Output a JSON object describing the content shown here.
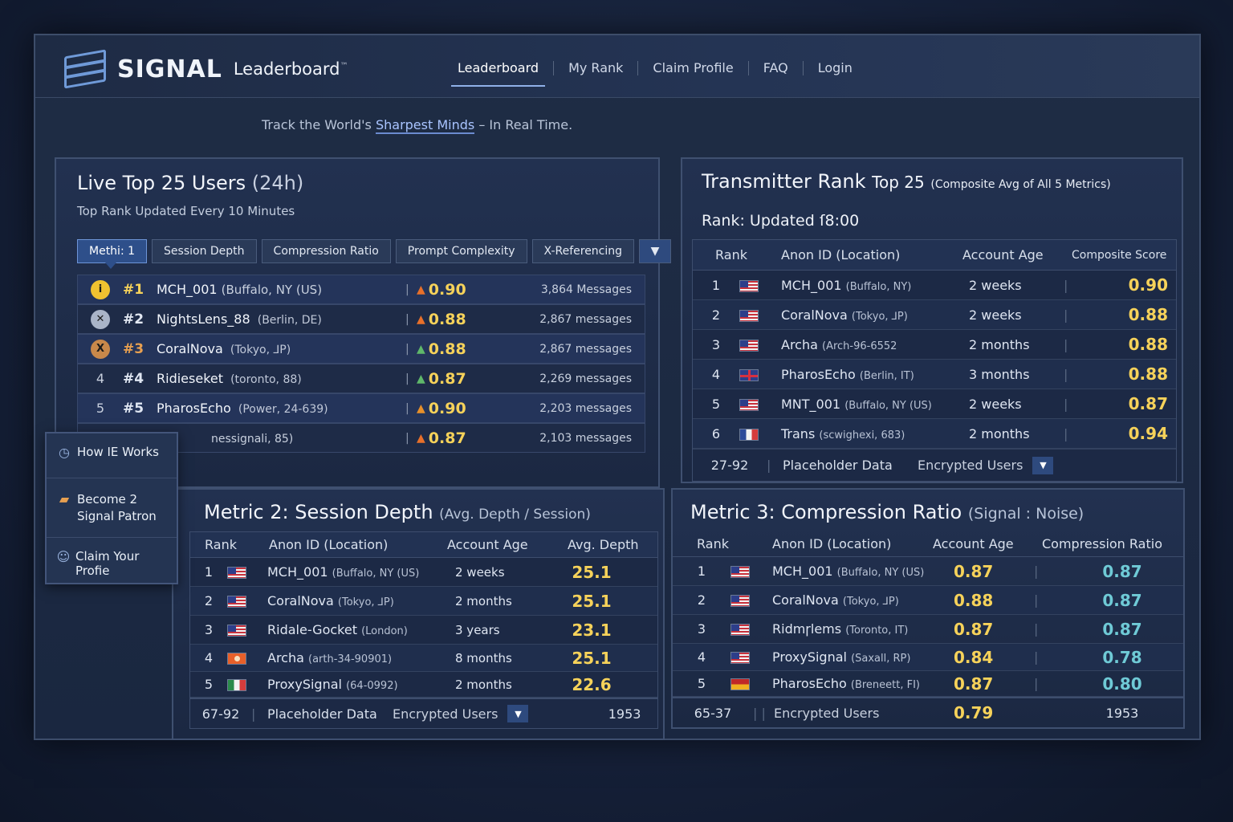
{
  "header": {
    "brand": "SIGNAL",
    "brand_sub": "Leaderboard",
    "tm": "™",
    "nav": [
      "Leaderboard",
      "My Rank",
      "Claim Profile",
      "FAQ",
      "Login"
    ],
    "tagline_pre": "Track the World's ",
    "tagline_em": "Sharpest Minds",
    "tagline_post": " – In Real Time."
  },
  "live": {
    "title": "Live Top 25 Users",
    "title_suffix": "(24h)",
    "subtitle": "Top Rank Updated Every 10 Minutes",
    "tabs": [
      "Methi: 1",
      "Session Depth",
      "Compression Ratio",
      "Prompt Complexity",
      "X-Referencing"
    ],
    "rows": [
      {
        "medal": "i",
        "rank": "#1",
        "name": "MCH_001",
        "loc": "(Buffalo, NY (US)",
        "score": "0.90",
        "arrow": "▲",
        "msgs": "3,864 Messages"
      },
      {
        "medal": "✕",
        "rank": "#2",
        "name": "NightsLens_88",
        "loc": "(Berlin, DE)",
        "score": "0.88",
        "arrow": "▲",
        "msgs": "2,867 messages"
      },
      {
        "medal": "X",
        "rank": "#3",
        "name": "CoralNova",
        "loc": "(Tokyo, ⅃P)",
        "score": "0.88",
        "arrow": "▲",
        "msgs": "2,867 messages"
      },
      {
        "medal": "4",
        "rank": "#4",
        "name": "Ridieseket",
        "loc": "(toronto, 88)",
        "score": "0.87",
        "arrow": "▲",
        "msgs": "2,269 messages"
      },
      {
        "medal": "5",
        "rank": "#5",
        "name": "PharosEcho",
        "loc": "(Power, 24-639)",
        "score": "0.90",
        "arrow": "▲",
        "msgs": "2,203 messages"
      },
      {
        "medal": "",
        "rank": "",
        "name": "",
        "loc": "nessignali, 85)",
        "score": "0.87",
        "arrow": "▲",
        "msgs": "2,103 messages"
      }
    ]
  },
  "sidemenu": {
    "items": [
      "How IE Works",
      "Become 2 Signal Patron",
      "Claim Your Profie"
    ]
  },
  "transmitter": {
    "title": "Transmitter Rank",
    "title_mid": "Top 25",
    "title_small": "(Composite Avg of All 5 Metrics)",
    "updated": "Rank: Updated ſ8:00",
    "headers": [
      "Rank",
      "Anon ID (Location)",
      "Account Age",
      "Composite Score"
    ],
    "rows": [
      {
        "rank": "1",
        "flag": "us",
        "name": "MCH_001",
        "loc": "(Buffalo, NY)",
        "age": "2 weeks",
        "score": "0.90"
      },
      {
        "rank": "2",
        "flag": "us",
        "name": "CoralNova",
        "loc": "(Tokyo, ⅃P)",
        "age": "2 weeks",
        "score": "0.88"
      },
      {
        "rank": "3",
        "flag": "us",
        "name": "Archa",
        "loc": "(Arch-96-6552",
        "age": "2 months",
        "score": "0.88"
      },
      {
        "rank": "4",
        "flag": "uk",
        "name": "PharosEcho",
        "loc": "(Berlin, IT)",
        "age": "3 months",
        "score": "0.88"
      },
      {
        "rank": "5",
        "flag": "us",
        "name": "MNT_001",
        "loc": "(Buffalo, NY (US)",
        "age": "2 weeks",
        "score": "0.87"
      },
      {
        "rank": "6",
        "flag": "fr",
        "name": "Trans",
        "loc": "(scwighexi, 683)",
        "age": "2 months",
        "score": "0.94"
      }
    ],
    "footer": {
      "range": "27-92",
      "label": "Placeholder Data",
      "enc": "Encrypted Users"
    }
  },
  "session": {
    "title": "Metric 2: Session Depth",
    "title_suffix": "(Avg. Depth / Session)",
    "headers": [
      "Rank",
      "Anon ID (Location)",
      "Account Age",
      "Avg. Depth"
    ],
    "rows": [
      {
        "rank": "1",
        "flag": "us",
        "name": "MCH_001",
        "loc": "(Buffalo, NY (US)",
        "age": "2 weeks",
        "value": "25.1"
      },
      {
        "rank": "2",
        "flag": "us",
        "name": "CoralNova",
        "loc": "(Tokyo, ⅃P)",
        "age": "2 months",
        "value": "25.1"
      },
      {
        "rank": "3",
        "flag": "us",
        "name": "Ridale-Gocket",
        "loc": "(London)",
        "age": "3 years",
        "value": "23.1"
      },
      {
        "rank": "4",
        "flag": "jp",
        "name": "Archa",
        "loc": "(arth-34-90901)",
        "age": "8 months",
        "value": "25.1"
      },
      {
        "rank": "5",
        "flag": "it",
        "name": "ProxySignal",
        "loc": "(64-0992)",
        "age": "2 months",
        "value": "22.6"
      }
    ],
    "footer": {
      "range": "67-92",
      "label": "Placeholder Data",
      "enc": "Encrypted Users",
      "value": "1953"
    }
  },
  "compression": {
    "title": "Metric 3: Compression Ratio",
    "title_suffix": "(Signal : Noise)",
    "headers": [
      "Rank",
      "Anon ID (Location)",
      "Account Age",
      "Compression Ratio"
    ],
    "rows": [
      {
        "rank": "1",
        "flag": "us",
        "name": "MCH_001",
        "loc": "(Buffalo, NY (US)",
        "age": "0.87",
        "value": "0.87"
      },
      {
        "rank": "2",
        "flag": "us",
        "name": "CoralNova",
        "loc": "(Tokyo, ⅃P)",
        "age": "0.88",
        "value": "0.87"
      },
      {
        "rank": "3",
        "flag": "us",
        "name": "Ridmɼlems",
        "loc": "(Toronto, IT)",
        "age": "0.87",
        "value": "0.87"
      },
      {
        "rank": "4",
        "flag": "us",
        "name": "ProxySignal",
        "loc": "(Saxall, RP)",
        "age": "0.84",
        "value": "0.78"
      },
      {
        "rank": "5",
        "flag": "de",
        "name": "PharosEcho",
        "loc": "(Breneett, FI)",
        "age": "0.87",
        "value": "0.80"
      }
    ],
    "footer": {
      "range": "65-37",
      "enc": "Encrypted Users",
      "age": "0.79",
      "value": "1953"
    }
  },
  "colors": {
    "gold": "#f6d25a",
    "teal": "#6fcad6",
    "accent": "#2e4f8a",
    "up": "#5fb86a",
    "down": "#e8702a"
  }
}
